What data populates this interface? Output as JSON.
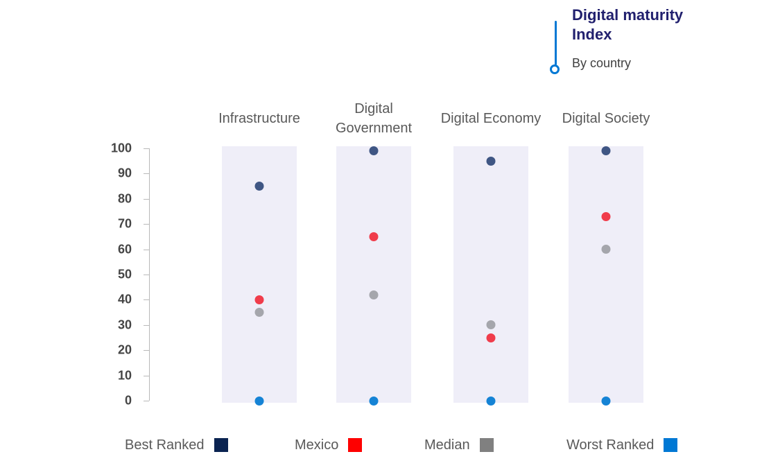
{
  "header": {
    "title": "Digital maturity Index",
    "title_line1": "Digital maturity",
    "title_line2": "Index",
    "subtitle": "By country",
    "accent_color": "#0078D4",
    "title_color": "#21206E"
  },
  "chart_data": {
    "type": "scatter",
    "title": "Digital maturity Index",
    "subtitle": "By country",
    "categories": [
      "Infrastructure",
      "Digital Government",
      "Digital Economy",
      "Digital Society"
    ],
    "series": [
      {
        "name": "Best Ranked",
        "values": [
          85,
          99,
          95,
          99
        ],
        "dot_color": "#3F5684",
        "legend_color": "#0A2351"
      },
      {
        "name": "Mexico",
        "values": [
          40,
          65,
          25,
          73
        ],
        "dot_color": "#F03C4B",
        "legend_color": "#FE0000"
      },
      {
        "name": "Median",
        "values": [
          35,
          42,
          30,
          60
        ],
        "dot_color": "#A5A6AC",
        "legend_color": "#808080"
      },
      {
        "name": "Worst Ranked",
        "values": [
          0,
          0,
          0,
          0
        ],
        "dot_color": "#1583D5",
        "legend_color": "#0078D4"
      }
    ],
    "ylim": [
      0,
      100
    ],
    "yticks": [
      0,
      10,
      20,
      30,
      40,
      50,
      60,
      70,
      80,
      90,
      100
    ],
    "grid": false,
    "legend_position": "bottom",
    "band_color": "#EFEEF8",
    "axis_color": "#B9B9B9"
  }
}
